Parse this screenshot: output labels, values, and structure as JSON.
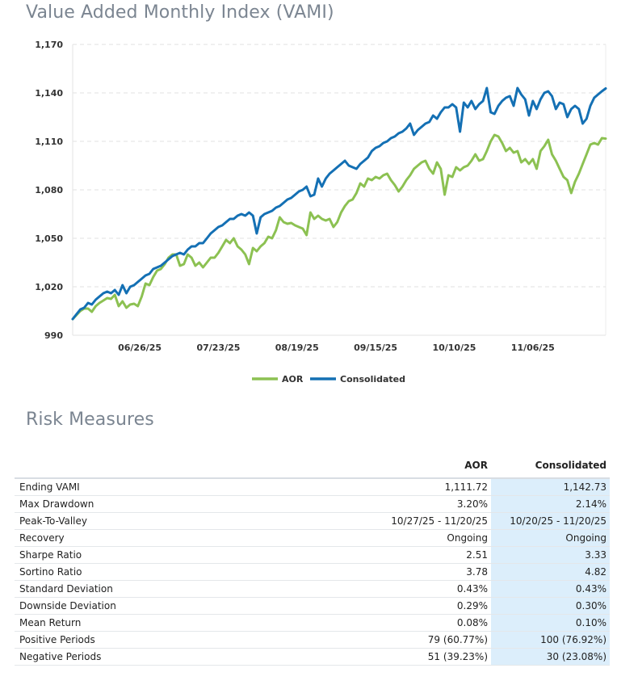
{
  "page": {
    "chart_title": "Value Added Monthly Index (VAMI)",
    "risk_title": "Risk Measures"
  },
  "chart_data": {
    "type": "line",
    "title": "Value Added Monthly Index (VAMI)",
    "xlabel": "",
    "ylabel": "",
    "ylim": [
      990,
      1170
    ],
    "yticks": [
      990,
      1020,
      1050,
      1080,
      1110,
      1140,
      1170
    ],
    "ytick_labels": [
      "990",
      "1,020",
      "1,050",
      "1,080",
      "1,110",
      "1,140",
      "1,170"
    ],
    "x_count": 140,
    "xticks": [
      {
        "index": 17.5,
        "label": "06/26/25"
      },
      {
        "index": 38,
        "label": "07/23/25"
      },
      {
        "index": 58.5,
        "label": "08/19/25"
      },
      {
        "index": 79,
        "label": "09/15/25"
      },
      {
        "index": 99.5,
        "label": "10/10/25"
      },
      {
        "index": 120,
        "label": "11/06/25"
      }
    ],
    "grid": true,
    "legend": "bottom-center",
    "series": [
      {
        "name": "AOR",
        "color": "#8cc152",
        "values": [
          1000,
          1002.5,
          1005,
          1006.5,
          1006.5,
          1004.5,
          1008,
          1010,
          1011.5,
          1013,
          1012.5,
          1015,
          1008,
          1011,
          1007,
          1009,
          1009.5,
          1008,
          1014,
          1022,
          1021,
          1026,
          1030,
          1031,
          1034,
          1038,
          1040,
          1040,
          1033,
          1034,
          1040,
          1038,
          1033,
          1035,
          1032,
          1035,
          1038,
          1038,
          1041,
          1045,
          1049,
          1047,
          1050,
          1045,
          1043,
          1040,
          1034,
          1044,
          1042,
          1045,
          1047,
          1051,
          1050,
          1055,
          1063,
          1060,
          1059,
          1059.5,
          1058,
          1057,
          1056,
          1052,
          1066,
          1062,
          1064,
          1062,
          1061,
          1062,
          1057,
          1060,
          1066,
          1070,
          1073,
          1074,
          1078,
          1084,
          1082,
          1087,
          1086,
          1088,
          1087,
          1089,
          1090,
          1086,
          1083,
          1079,
          1082,
          1086,
          1089,
          1093,
          1095,
          1097,
          1098,
          1093,
          1090,
          1097,
          1093,
          1077,
          1089,
          1088,
          1094,
          1092,
          1094,
          1095,
          1098,
          1102,
          1098,
          1099,
          1104,
          1110,
          1114,
          1113,
          1109,
          1104,
          1106,
          1103,
          1104,
          1097,
          1099,
          1096,
          1099,
          1093,
          1104,
          1107,
          1111,
          1102,
          1098,
          1093,
          1088,
          1086,
          1078,
          1085,
          1090,
          1096,
          1102,
          1108,
          1109,
          1108,
          1112,
          1111.72
        ]
      },
      {
        "name": "Consolidated",
        "color": "#1470b4",
        "values": [
          1000,
          1003,
          1006,
          1007,
          1010,
          1009,
          1012,
          1014,
          1016,
          1017,
          1016,
          1018,
          1015,
          1021,
          1016,
          1020,
          1021,
          1023,
          1025,
          1027,
          1028,
          1031,
          1032,
          1033,
          1035,
          1037,
          1039,
          1040,
          1041,
          1040,
          1043,
          1045,
          1045,
          1047,
          1047,
          1050,
          1053,
          1055,
          1057,
          1058,
          1060,
          1062,
          1062,
          1064,
          1065,
          1064,
          1066,
          1064,
          1053,
          1063,
          1065,
          1066,
          1067,
          1069,
          1070,
          1072,
          1074,
          1075,
          1077,
          1079,
          1080,
          1082,
          1076,
          1077,
          1087,
          1082,
          1087,
          1090,
          1092,
          1094,
          1096,
          1098,
          1095,
          1094,
          1093,
          1096,
          1098,
          1100,
          1104,
          1106,
          1107,
          1109,
          1110,
          1112,
          1113,
          1115,
          1116,
          1118,
          1121,
          1114,
          1117,
          1119,
          1121,
          1122,
          1126,
          1124,
          1128,
          1131,
          1131,
          1133,
          1131,
          1116,
          1134,
          1131,
          1135,
          1130,
          1133,
          1135,
          1143,
          1128,
          1127,
          1132,
          1135,
          1137,
          1138,
          1132,
          1143,
          1139,
          1136,
          1126,
          1135,
          1130,
          1136,
          1140,
          1141,
          1138,
          1130,
          1134,
          1133,
          1125,
          1130,
          1132,
          1130,
          1121,
          1124,
          1132,
          1137,
          1139,
          1141,
          1142.73
        ]
      }
    ]
  },
  "risk": {
    "columns": [
      "",
      "AOR",
      "Consolidated"
    ],
    "rows": [
      {
        "label": "Ending VAMI",
        "aor": "1,111.72",
        "consolidated": "1,142.73"
      },
      {
        "label": "Max Drawdown",
        "aor": "3.20%",
        "consolidated": "2.14%"
      },
      {
        "label": "Peak-To-Valley",
        "aor": "10/27/25 - 11/20/25",
        "consolidated": "10/20/25 - 11/20/25"
      },
      {
        "label": "Recovery",
        "aor": "Ongoing",
        "consolidated": "Ongoing"
      },
      {
        "label": "Sharpe Ratio",
        "aor": "2.51",
        "consolidated": "3.33"
      },
      {
        "label": "Sortino Ratio",
        "aor": "3.78",
        "consolidated": "4.82"
      },
      {
        "label": "Standard Deviation",
        "aor": "0.43%",
        "consolidated": "0.43%"
      },
      {
        "label": "Downside Deviation",
        "aor": "0.29%",
        "consolidated": "0.30%"
      },
      {
        "label": "Mean Return",
        "aor": "0.08%",
        "consolidated": "0.10%"
      },
      {
        "label": "Positive Periods",
        "aor": "79 (60.77%)",
        "consolidated": "100 (76.92%)"
      },
      {
        "label": "Negative Periods",
        "aor": "51 (39.23%)",
        "consolidated": "30 (23.08%)"
      }
    ]
  }
}
